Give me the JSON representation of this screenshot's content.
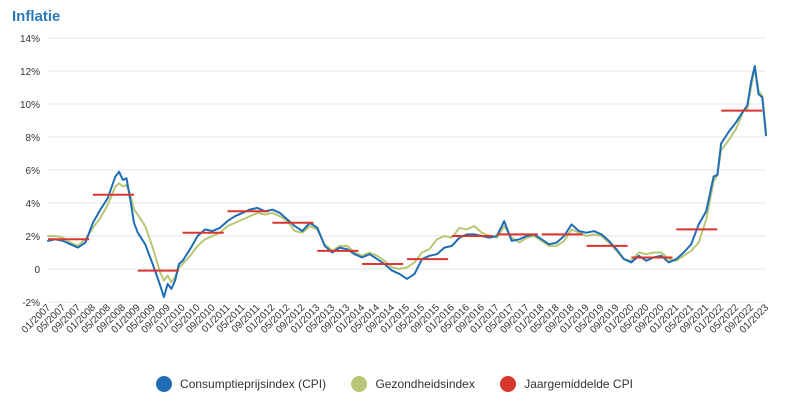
{
  "chart_data": {
    "type": "line",
    "title": "Inflatie",
    "xlabel": "",
    "ylabel": "",
    "ylim": [
      -2,
      14
    ],
    "yticks": [
      "-2%",
      "0",
      "2%",
      "4%",
      "6%",
      "8%",
      "10%",
      "12%",
      "14%"
    ],
    "grid": true,
    "legend": "bottom",
    "x_tick_labels": [
      "01/2007",
      "05/2007",
      "09/2007",
      "01/2008",
      "05/2008",
      "09/2008",
      "01/2009",
      "05/2009",
      "09/2009",
      "01/2010",
      "05/2010",
      "09/2010",
      "01/2011",
      "05/2011",
      "09/2011",
      "01/2012",
      "05/2012",
      "09/2012",
      "01/2013",
      "05/2013",
      "09/2013",
      "01/2014",
      "05/2014",
      "09/2014",
      "01/2015",
      "05/2015",
      "09/2015",
      "01/2016",
      "05/2016",
      "09/2016",
      "01/2017",
      "05/2017",
      "09/2017",
      "01/2018",
      "05/2018",
      "09/2018",
      "01/2019",
      "05/2019",
      "09/2019",
      "01/2020",
      "05/2020",
      "09/2020",
      "01/2021",
      "05/2021",
      "09/2021",
      "01/2022",
      "05/2022",
      "09/2022",
      "01/2023"
    ],
    "series": [
      {
        "name": "Consumptieprijsindex (CPI)",
        "color": "#1f6eb5",
        "x": [
          "01/2007",
          "03/2007",
          "05/2007",
          "07/2007",
          "09/2007",
          "11/2007",
          "01/2008",
          "03/2008",
          "05/2008",
          "07/2008",
          "08/2008",
          "09/2008",
          "10/2008",
          "11/2008",
          "12/2008",
          "01/2009",
          "03/2009",
          "05/2009",
          "07/2009",
          "08/2009",
          "09/2009",
          "10/2009",
          "11/2009",
          "12/2009",
          "01/2010",
          "03/2010",
          "05/2010",
          "07/2010",
          "09/2010",
          "11/2010",
          "01/2011",
          "03/2011",
          "05/2011",
          "07/2011",
          "09/2011",
          "11/2011",
          "01/2012",
          "03/2012",
          "05/2012",
          "07/2012",
          "09/2012",
          "11/2012",
          "01/2013",
          "03/2013",
          "05/2013",
          "07/2013",
          "09/2013",
          "11/2013",
          "01/2014",
          "03/2014",
          "05/2014",
          "07/2014",
          "09/2014",
          "11/2014",
          "01/2015",
          "03/2015",
          "05/2015",
          "07/2015",
          "09/2015",
          "11/2015",
          "01/2016",
          "03/2016",
          "05/2016",
          "07/2016",
          "09/2016",
          "11/2016",
          "01/2017",
          "03/2017",
          "05/2017",
          "07/2017",
          "09/2017",
          "11/2017",
          "01/2018",
          "03/2018",
          "05/2018",
          "07/2018",
          "09/2018",
          "11/2018",
          "01/2019",
          "03/2019",
          "05/2019",
          "07/2019",
          "09/2019",
          "11/2019",
          "01/2020",
          "03/2020",
          "05/2020",
          "07/2020",
          "09/2020",
          "11/2020",
          "01/2021",
          "03/2021",
          "05/2021",
          "07/2021",
          "09/2021",
          "11/2021",
          "12/2021",
          "01/2022",
          "03/2022",
          "05/2022",
          "07/2022",
          "08/2022",
          "09/2022",
          "10/2022",
          "11/2022",
          "12/2022",
          "01/2023"
        ],
        "values": [
          1.7,
          1.8,
          1.7,
          1.5,
          1.3,
          1.6,
          2.8,
          3.6,
          4.3,
          5.6,
          5.9,
          5.4,
          5.5,
          4.2,
          2.8,
          2.2,
          1.5,
          0.3,
          -1.0,
          -1.7,
          -0.9,
          -1.2,
          -0.7,
          0.3,
          0.5,
          1.2,
          2.0,
          2.4,
          2.3,
          2.5,
          2.9,
          3.2,
          3.4,
          3.6,
          3.7,
          3.5,
          3.6,
          3.4,
          3.0,
          2.6,
          2.3,
          2.8,
          2.5,
          1.4,
          1.0,
          1.3,
          1.2,
          0.9,
          0.7,
          0.9,
          0.6,
          0.3,
          -0.1,
          -0.3,
          -0.6,
          -0.3,
          0.6,
          0.8,
          0.9,
          1.3,
          1.4,
          1.9,
          2.1,
          2.1,
          2.0,
          1.9,
          2.0,
          2.9,
          1.7,
          1.8,
          2.0,
          2.1,
          1.8,
          1.5,
          1.6,
          2.0,
          2.7,
          2.3,
          2.2,
          2.3,
          2.1,
          1.7,
          1.2,
          0.6,
          0.4,
          0.8,
          0.5,
          0.7,
          0.8,
          0.4,
          0.6,
          1.0,
          1.5,
          2.7,
          3.5,
          5.6,
          5.7,
          7.6,
          8.3,
          8.9,
          9.6,
          9.9,
          11.3,
          12.3,
          10.6,
          10.4,
          8.1
        ]
      },
      {
        "name": "Gezondheidsindex",
        "color": "#b7c776",
        "x": [
          "01/2007",
          "03/2007",
          "05/2007",
          "07/2007",
          "09/2007",
          "11/2007",
          "01/2008",
          "03/2008",
          "05/2008",
          "07/2008",
          "08/2008",
          "09/2008",
          "10/2008",
          "11/2008",
          "12/2008",
          "01/2009",
          "03/2009",
          "05/2009",
          "07/2009",
          "08/2009",
          "09/2009",
          "10/2009",
          "11/2009",
          "12/2009",
          "01/2010",
          "03/2010",
          "05/2010",
          "07/2010",
          "09/2010",
          "11/2010",
          "01/2011",
          "03/2011",
          "05/2011",
          "07/2011",
          "09/2011",
          "11/2011",
          "01/2012",
          "03/2012",
          "05/2012",
          "07/2012",
          "09/2012",
          "11/2012",
          "01/2013",
          "03/2013",
          "05/2013",
          "07/2013",
          "09/2013",
          "11/2013",
          "01/2014",
          "03/2014",
          "05/2014",
          "07/2014",
          "09/2014",
          "11/2014",
          "01/2015",
          "03/2015",
          "05/2015",
          "07/2015",
          "09/2015",
          "11/2015",
          "01/2016",
          "03/2016",
          "05/2016",
          "07/2016",
          "09/2016",
          "11/2016",
          "01/2017",
          "03/2017",
          "05/2017",
          "07/2017",
          "09/2017",
          "11/2017",
          "01/2018",
          "03/2018",
          "05/2018",
          "07/2018",
          "09/2018",
          "11/2018",
          "01/2019",
          "03/2019",
          "05/2019",
          "07/2019",
          "09/2019",
          "11/2019",
          "01/2020",
          "03/2020",
          "05/2020",
          "07/2020",
          "09/2020",
          "11/2020",
          "01/2021",
          "03/2021",
          "05/2021",
          "07/2021",
          "09/2021",
          "11/2021",
          "12/2021",
          "01/2022",
          "03/2022",
          "05/2022",
          "07/2022",
          "08/2022",
          "09/2022",
          "10/2022",
          "11/2022",
          "12/2022",
          "01/2023"
        ],
        "values": [
          2.0,
          2.0,
          1.9,
          1.6,
          1.4,
          1.8,
          2.5,
          3.1,
          3.9,
          5.0,
          5.2,
          5.0,
          5.1,
          4.5,
          3.6,
          3.3,
          2.6,
          1.3,
          -0.2,
          -0.7,
          -0.4,
          -0.8,
          -0.5,
          0.1,
          0.3,
          0.8,
          1.4,
          1.8,
          2.0,
          2.2,
          2.6,
          2.8,
          3.0,
          3.2,
          3.4,
          3.3,
          3.4,
          3.2,
          2.9,
          2.3,
          2.2,
          2.6,
          2.4,
          1.5,
          1.1,
          1.4,
          1.4,
          1.0,
          0.8,
          1.0,
          0.8,
          0.5,
          0.1,
          0.0,
          0.1,
          0.4,
          1.0,
          1.2,
          1.8,
          2.0,
          1.9,
          2.5,
          2.4,
          2.6,
          2.2,
          2.0,
          1.9,
          2.6,
          1.9,
          1.6,
          1.9,
          2.0,
          1.7,
          1.4,
          1.4,
          1.7,
          2.4,
          2.2,
          2.0,
          2.1,
          2.0,
          1.6,
          1.1,
          0.6,
          0.5,
          1.0,
          0.9,
          1.0,
          1.0,
          0.6,
          0.5,
          0.8,
          1.1,
          1.6,
          3.0,
          5.3,
          5.7,
          7.2,
          7.8,
          8.5,
          9.6,
          9.7,
          11.0,
          12.2,
          10.8,
          10.5,
          8.3
        ]
      },
      {
        "name": "Jaargemiddelde CPI",
        "color": "#d93630",
        "years": [
          2007,
          2008,
          2009,
          2010,
          2011,
          2012,
          2013,
          2014,
          2015,
          2016,
          2017,
          2018,
          2019,
          2020,
          2021,
          2022
        ],
        "values": [
          1.8,
          4.5,
          -0.1,
          2.2,
          3.5,
          2.8,
          1.1,
          0.3,
          0.6,
          2.0,
          2.1,
          2.1,
          1.4,
          0.7,
          2.4,
          9.6
        ]
      }
    ]
  },
  "legend_items": [
    {
      "label": "Consumptieprijsindex (CPI)",
      "color": "#1f6eb5"
    },
    {
      "label": "Gezondheidsindex",
      "color": "#b7c776"
    },
    {
      "label": "Jaargemiddelde CPI",
      "color": "#d93630"
    }
  ]
}
